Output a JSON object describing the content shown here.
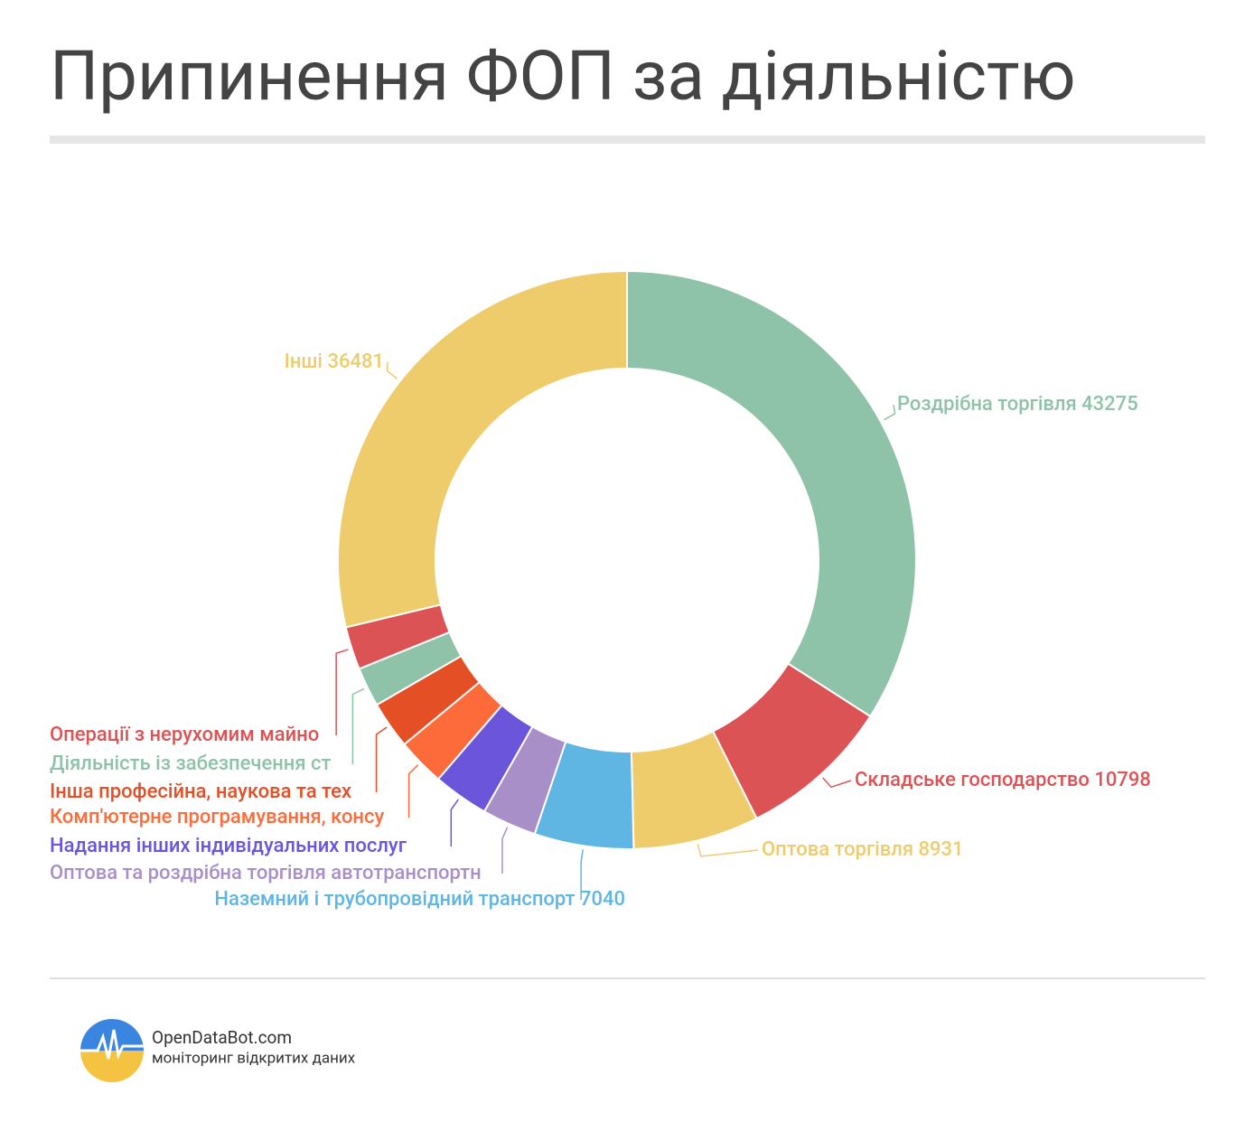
{
  "chart_data": {
    "type": "donut",
    "title": "Припинення ФОП за діяльністю",
    "values": [
      43275,
      10798,
      8931,
      7040,
      3860,
      3940,
      3400,
      3370,
      2800,
      3050,
      36481
    ],
    "value_labels": [
      "Роздрібна торгівля 43275",
      "Складське господарство 10798",
      "Оптова торгівля 8931",
      "Наземний і трубопровідний транспорт 7040",
      "Оптова та роздрібна торгівля автотранспортн",
      "Надання інших індивідуальних послуг",
      "Комп'ютерне програмування, консу",
      "Інша професійна, наукова та тех",
      "Діяльність із забезпечення ст",
      "Операції з нерухомим майно",
      "Інші 36481"
    ],
    "colors": [
      "#8fc3a9",
      "#dc5356",
      "#eecb6b",
      "#5fb6e3",
      "#a98fc8",
      "#6b55db",
      "#fd6b3a",
      "#e44f26",
      "#8fc3a9",
      "#dc5356",
      "#eecb6b"
    ]
  },
  "footer": {
    "brand": "OpenDataBot.com",
    "tagline": "моніторинг відкритих даних"
  }
}
